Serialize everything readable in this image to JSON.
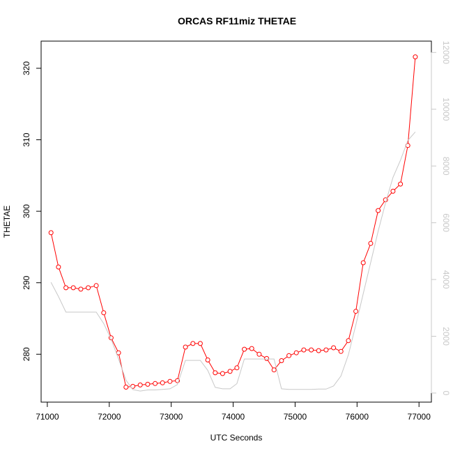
{
  "chart_data": {
    "type": "line",
    "title": "ORCAS RF11miz THETAE",
    "xlabel": "UTC Seconds",
    "ylabel": "THETAE",
    "xlim": [
      70900,
      77200
    ],
    "ylim": [
      273.3,
      323.8
    ],
    "y2lim": [
      -320,
      12400
    ],
    "x_ticks": [
      71000,
      72000,
      73000,
      74000,
      75000,
      76000,
      77000
    ],
    "y_ticks": [
      280,
      290,
      300,
      310,
      320
    ],
    "y2_ticks": [
      0,
      2000,
      4000,
      6000,
      8000,
      10000,
      12000
    ],
    "grid": false,
    "legend": "none",
    "colors": {
      "primary": "#ff0000",
      "secondary": "#c8c8c8"
    },
    "series": [
      {
        "axis": "left",
        "style": "line-points",
        "x": [
          71060,
          71180,
          71300,
          71420,
          71540,
          71660,
          71790,
          71910,
          72030,
          72150,
          72270,
          72380,
          72500,
          72620,
          72740,
          72860,
          72980,
          73100,
          73230,
          73350,
          73470,
          73590,
          73710,
          73830,
          73950,
          74060,
          74180,
          74300,
          74420,
          74540,
          74660,
          74780,
          74900,
          75020,
          75140,
          75260,
          75380,
          75500,
          75620,
          75740,
          75860,
          75980,
          76100,
          76220,
          76340,
          76460,
          76580,
          76700,
          76820,
          76940
        ],
        "y": [
          297.0,
          292.2,
          289.3,
          289.3,
          289.1,
          289.3,
          289.6,
          285.8,
          282.3,
          280.2,
          275.4,
          275.5,
          275.7,
          275.8,
          275.9,
          276.0,
          276.2,
          276.3,
          281.0,
          281.5,
          281.5,
          279.2,
          277.4,
          277.3,
          277.6,
          278.1,
          280.7,
          280.8,
          280.0,
          279.4,
          277.8,
          279.1,
          279.8,
          280.2,
          280.6,
          280.6,
          280.5,
          280.6,
          280.9,
          280.4,
          281.9,
          286.0,
          292.8,
          295.5,
          300.1,
          301.6,
          302.8,
          303.8,
          309.2,
          321.6
        ]
      },
      {
        "axis": "right",
        "style": "line",
        "x": [
          71060,
          71180,
          71300,
          71420,
          71540,
          71660,
          71790,
          71910,
          72030,
          72150,
          72270,
          72380,
          72500,
          72620,
          72740,
          72860,
          72980,
          73100,
          73230,
          73350,
          73470,
          73590,
          73710,
          73830,
          73950,
          74060,
          74180,
          74300,
          74420,
          74540,
          74660,
          74780,
          74900,
          75020,
          75140,
          75260,
          75380,
          75500,
          75620,
          75740,
          75860,
          75980,
          76100,
          76220,
          76340,
          76460,
          76580,
          76700,
          76820,
          76940
        ],
        "y": [
          3900,
          3400,
          2850,
          2850,
          2850,
          2850,
          2850,
          2450,
          1900,
          1200,
          450,
          120,
          70,
          110,
          110,
          130,
          150,
          300,
          1150,
          1150,
          1150,
          800,
          200,
          150,
          150,
          330,
          1200,
          1200,
          1200,
          1200,
          1200,
          150,
          130,
          130,
          130,
          130,
          140,
          140,
          250,
          600,
          1350,
          2400,
          3500,
          4600,
          5700,
          6700,
          7600,
          8200,
          8900,
          9200
        ]
      }
    ]
  }
}
